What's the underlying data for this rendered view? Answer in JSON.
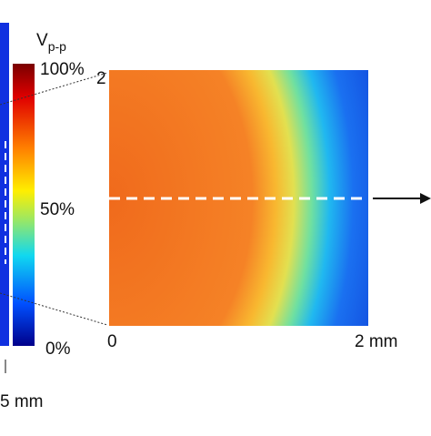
{
  "colorbar": {
    "title": "V",
    "title_sub": "p-p",
    "ticks": [
      "100%",
      "50%",
      "0%"
    ]
  },
  "map": {
    "y_label": "2",
    "x_labels": [
      "0",
      "2 mm"
    ]
  },
  "left_panel": {
    "x_label": "5 mm"
  }
}
